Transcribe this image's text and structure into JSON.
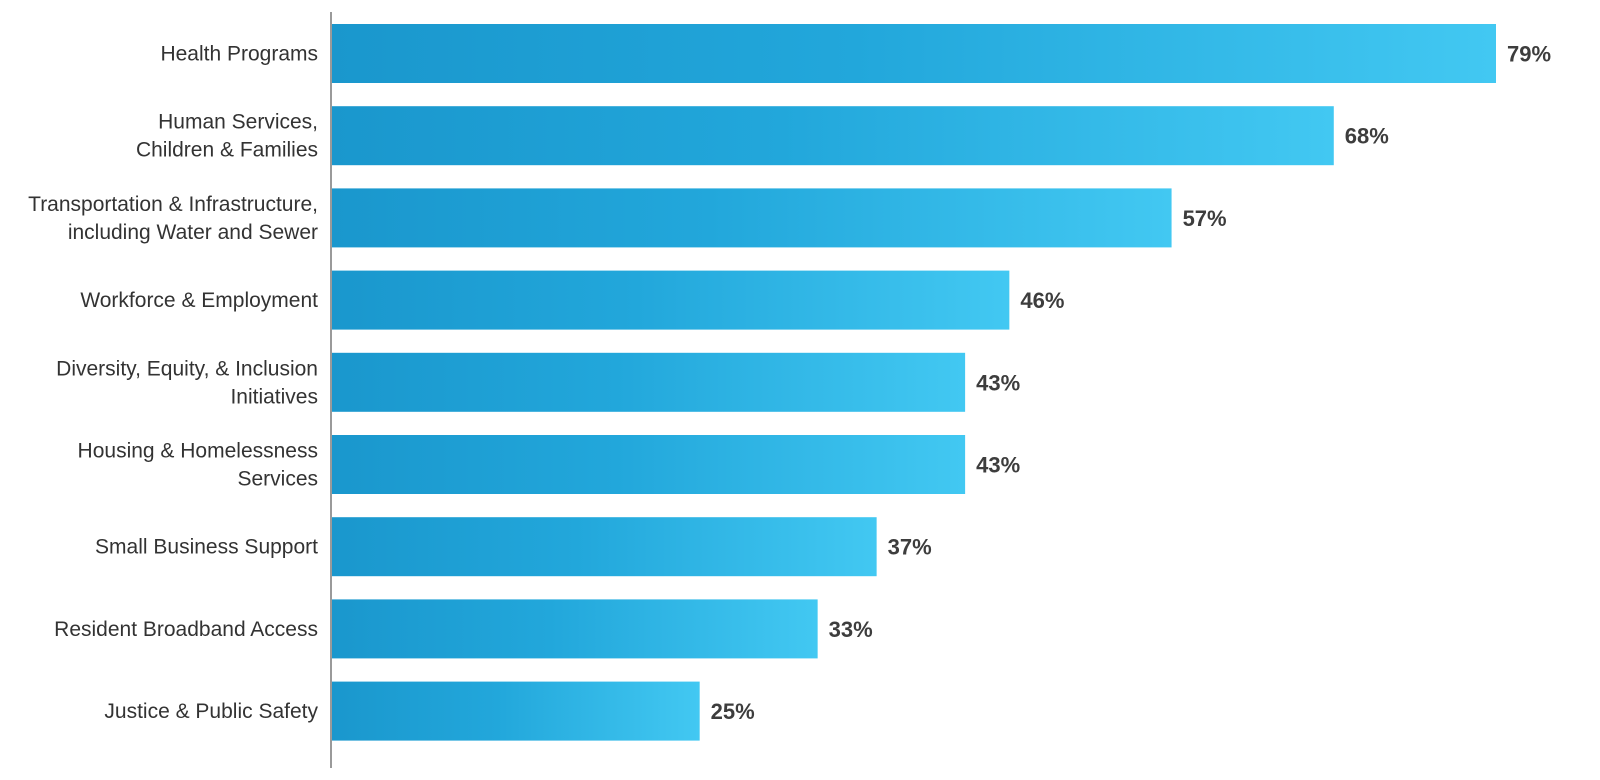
{
  "chart_data": {
    "type": "bar",
    "orientation": "horizontal",
    "categories": [
      [
        "Health Programs"
      ],
      [
        "Human Services,",
        "Children & Families"
      ],
      [
        "Transportation & Infrastructure,",
        "including Water and Sewer"
      ],
      [
        "Workforce & Employment"
      ],
      [
        "Diversity, Equity, & Inclusion",
        "Initiatives"
      ],
      [
        "Housing & Homelessness",
        "Services"
      ],
      [
        "Small Business Support"
      ],
      [
        "Resident Broadband Access"
      ],
      [
        "Justice & Public Safety"
      ]
    ],
    "values": [
      79,
      68,
      57,
      46,
      43,
      43,
      37,
      33,
      25
    ],
    "value_labels": [
      "79%",
      "68%",
      "57%",
      "46%",
      "43%",
      "43%",
      "37%",
      "33%",
      "25%"
    ],
    "xlim": [
      0,
      79
    ],
    "grid": false,
    "legend": "none",
    "colors": {
      "bar_start": "#1a97cd",
      "bar_end": "#42c8f2",
      "axis": "#9a9a9a",
      "category_text": "#333333",
      "value_text": "#3d3d3d"
    }
  }
}
